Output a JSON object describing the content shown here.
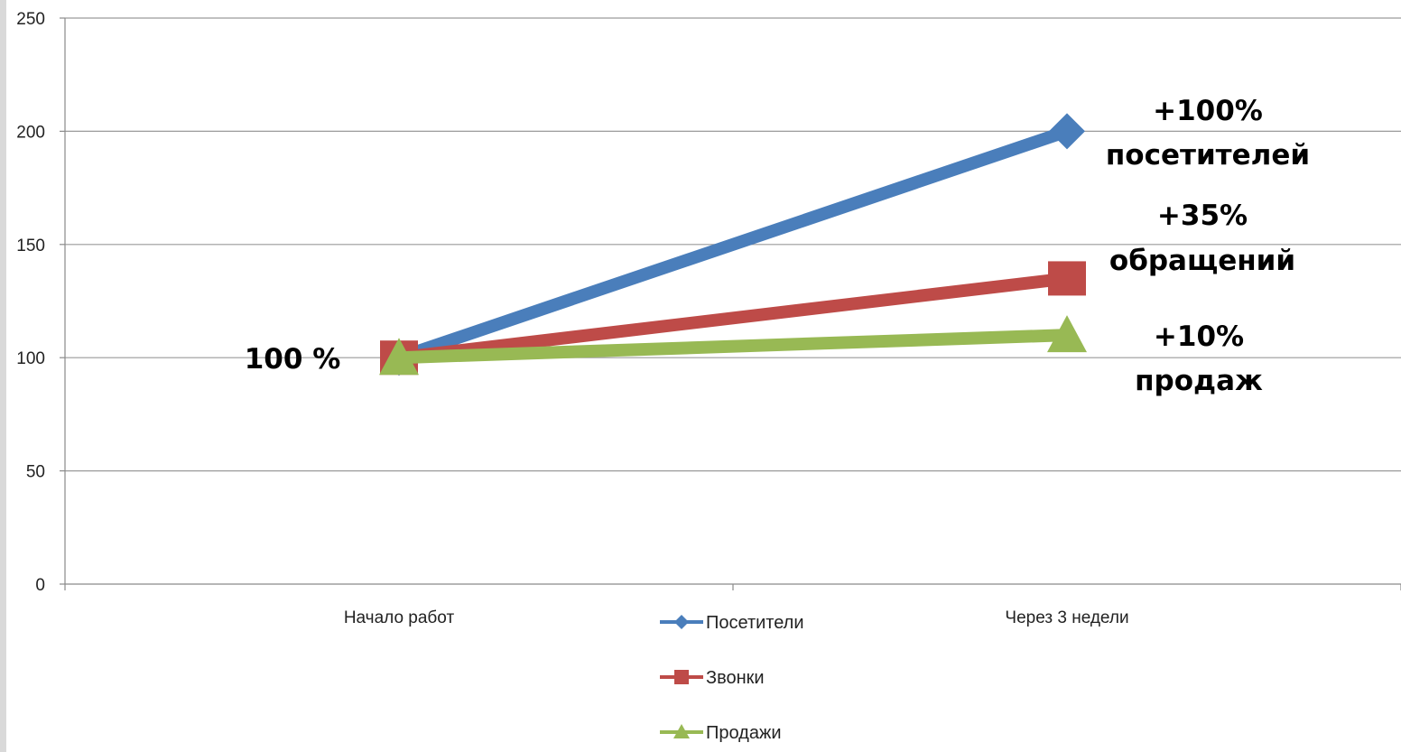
{
  "chart_data": {
    "type": "line",
    "categories": [
      "Начало работ",
      "Через 3 недели"
    ],
    "series": [
      {
        "name": "Посетители",
        "values": [
          100,
          200
        ],
        "color": "#4a7ebb",
        "marker": "diamond"
      },
      {
        "name": "Звонки",
        "values": [
          100,
          135
        ],
        "color": "#be4b48",
        "marker": "square"
      },
      {
        "name": "Продажи",
        "values": [
          100,
          110
        ],
        "color": "#98b954",
        "marker": "triangle"
      }
    ],
    "ylim": [
      0,
      250
    ],
    "yticks": [
      "0",
      "50",
      "100",
      "150",
      "200",
      "250"
    ],
    "grid": true,
    "legend_position": "bottom",
    "annotations": {
      "start": "100 %",
      "visitors_pct": "+100%",
      "visitors_word": "посетителей",
      "calls_pct": "+35%",
      "calls_word": "обращений",
      "sales_pct": "+10%",
      "sales_word": "продаж"
    }
  }
}
